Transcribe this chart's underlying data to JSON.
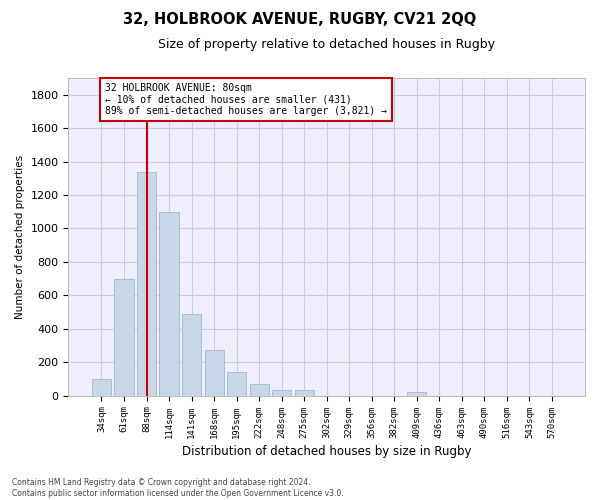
{
  "title": "32, HOLBROOK AVENUE, RUGBY, CV21 2QQ",
  "subtitle": "Size of property relative to detached houses in Rugby",
  "xlabel": "Distribution of detached houses by size in Rugby",
  "ylabel": "Number of detached properties",
  "bar_color": "#c8d8e8",
  "bar_edgecolor": "#a8bfd0",
  "grid_color": "#ccccdd",
  "background_color": "#eeeeff",
  "annotation_text_line1": "32 HOLBROOK AVENUE: 80sqm",
  "annotation_text_line2": "← 10% of detached houses are smaller (431)",
  "annotation_text_line3": "89% of semi-detached houses are larger (3,821) →",
  "annotation_box_facecolor": "#ffffff",
  "annotation_border_color": "#cc0000",
  "vline_color": "#cc0000",
  "categories": [
    "34sqm",
    "61sqm",
    "88sqm",
    "114sqm",
    "141sqm",
    "168sqm",
    "195sqm",
    "222sqm",
    "248sqm",
    "275sqm",
    "302sqm",
    "329sqm",
    "356sqm",
    "382sqm",
    "409sqm",
    "436sqm",
    "463sqm",
    "490sqm",
    "516sqm",
    "543sqm",
    "570sqm"
  ],
  "values": [
    100,
    700,
    1340,
    1100,
    490,
    270,
    140,
    70,
    35,
    35,
    0,
    0,
    0,
    0,
    20,
    0,
    0,
    0,
    0,
    0,
    0
  ],
  "ylim": [
    0,
    1900
  ],
  "yticks": [
    0,
    200,
    400,
    600,
    800,
    1000,
    1200,
    1400,
    1600,
    1800
  ],
  "footer_line1": "Contains HM Land Registry data © Crown copyright and database right 2024.",
  "footer_line2": "Contains public sector information licensed under the Open Government Licence v3.0.",
  "vline_idx": 2,
  "figwidth": 6.0,
  "figheight": 5.0,
  "dpi": 100
}
